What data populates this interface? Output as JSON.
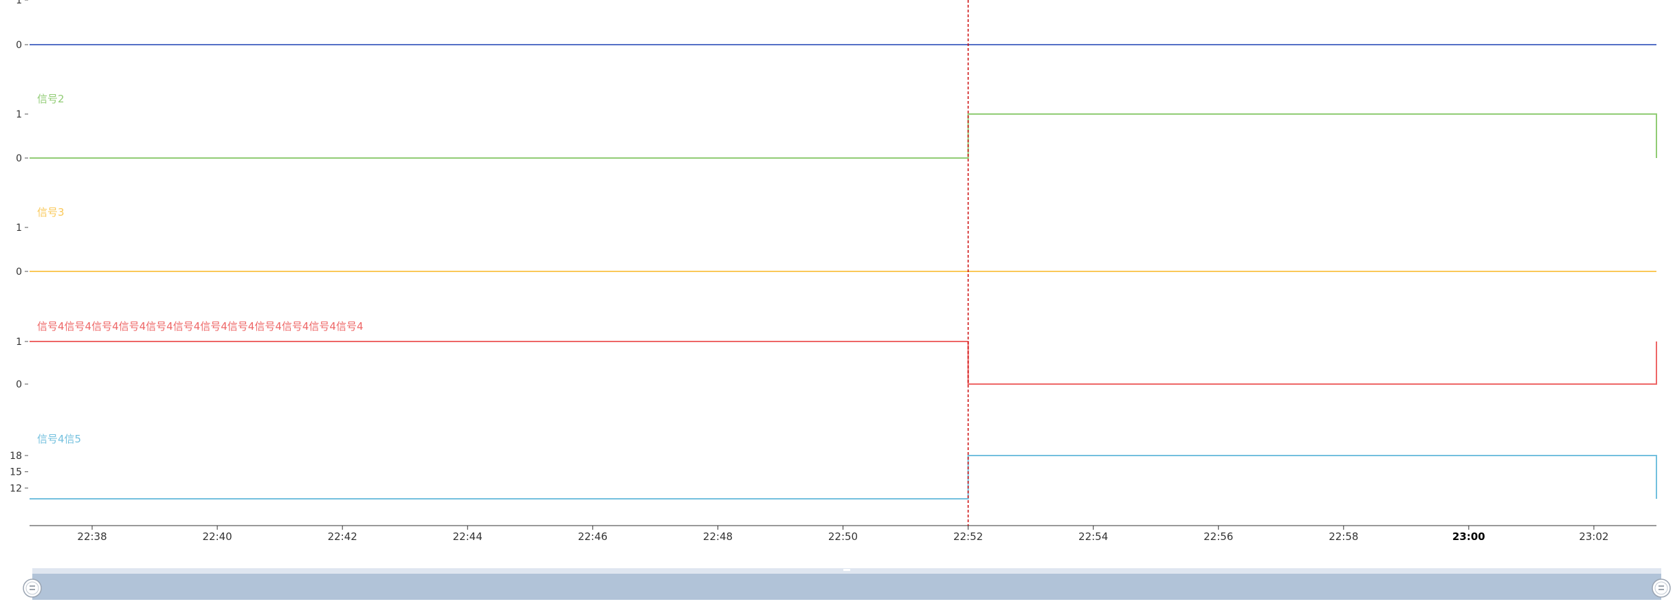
{
  "chart_data": {
    "type": "line",
    "x_axis": {
      "ticks": [
        "22:38",
        "22:40",
        "22:42",
        "22:44",
        "22:46",
        "22:48",
        "22:50",
        "22:52",
        "22:54",
        "22:56",
        "22:58",
        "23:00",
        "23:02"
      ],
      "bold_tick": "23:00",
      "range": [
        "22:37",
        "23:03"
      ]
    },
    "cursor_time": "22:52",
    "series": [
      {
        "name": "",
        "color": "#5470c6",
        "ticks": [
          0,
          1
        ],
        "ylim": [
          0,
          1
        ],
        "points": [
          [
            "22:37",
            0
          ],
          [
            "23:03",
            0
          ]
        ]
      },
      {
        "name": "信号2",
        "color": "#91cc75",
        "ticks": [
          0,
          1
        ],
        "ylim": [
          0,
          1
        ],
        "points": [
          [
            "22:37",
            0
          ],
          [
            "22:52",
            0
          ],
          [
            "22:52",
            1
          ],
          [
            "23:03",
            1
          ],
          [
            "23:03",
            0
          ]
        ]
      },
      {
        "name": "信号3",
        "color": "#fac858",
        "ticks": [
          0,
          1
        ],
        "ylim": [
          0,
          1
        ],
        "points": [
          [
            "22:37",
            0
          ],
          [
            "23:03",
            0
          ]
        ]
      },
      {
        "name": "信号4信号4信号4信号4信号4信号4信号4信号4信号4信号4信号4信号4",
        "color": "#ee6666",
        "ticks": [
          0,
          1
        ],
        "ylim": [
          0,
          1
        ],
        "points": [
          [
            "22:37",
            1
          ],
          [
            "22:52",
            1
          ],
          [
            "22:52",
            0
          ],
          [
            "23:03",
            0
          ],
          [
            "23:03",
            1
          ]
        ]
      },
      {
        "name": "信号4信5",
        "color": "#73c0de",
        "ticks": [
          12,
          15,
          18
        ],
        "ylim": [
          10,
          18
        ],
        "points": [
          [
            "22:37",
            10
          ],
          [
            "22:52",
            10
          ],
          [
            "22:52",
            18
          ],
          [
            "23:03",
            18
          ],
          [
            "23:03",
            10
          ]
        ]
      }
    ],
    "zoom": {
      "start_percent": 0,
      "end_percent": 100
    }
  },
  "colors": {
    "axis": "#333333",
    "cursor": "#cc0000",
    "slider_fill": "#b1c3d8",
    "slider_bg": "#dfe6f0"
  }
}
